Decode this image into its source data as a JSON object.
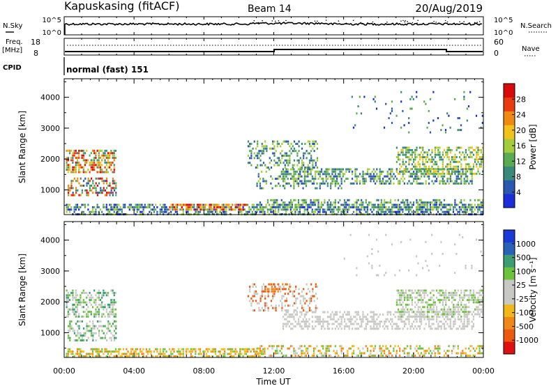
{
  "header": {
    "station": "Kapuskasing (fitACF)",
    "beam": "Beam 14",
    "date": "20/Aug/2019"
  },
  "strip_panels": {
    "nsky": {
      "left_label": "N.Sky",
      "left_ticks": [
        "10^5",
        "10^0"
      ],
      "right_ticks": [
        "10^5",
        "10^0"
      ],
      "right_label": "N.Search"
    },
    "freq": {
      "left_label_1": "Freq.",
      "left_label_2": "[MHz]",
      "left_ticks": [
        "18",
        "8"
      ],
      "right_ticks": [
        "60",
        "0"
      ],
      "right_label": "Nave"
    },
    "cpid": {
      "left_label": "CPID",
      "text": "normal (fast) 151"
    }
  },
  "chart_data": [
    {
      "type": "heatmap",
      "quantity": "power",
      "ylabel": "Slant Range [km]",
      "xlabel": "",
      "ylim": [
        200,
        4600
      ],
      "xlim_hours": [
        0,
        24
      ],
      "yticks": [
        "1000",
        "2000",
        "3000",
        "4000"
      ],
      "xticks": [
        "00:00",
        "04:00",
        "08:00",
        "12:00",
        "16:00",
        "20:00",
        "00:00"
      ],
      "colorbar": {
        "label": "Power [dB]",
        "tick_labels": [
          "4",
          "8",
          "12",
          "16",
          "20",
          "24",
          "28"
        ],
        "colors": [
          "#1a2fd8",
          "#2c58b0",
          "#3a8a7c",
          "#5aab52",
          "#a4cc3c",
          "#f0c21a",
          "#ef8a10",
          "#e83c10",
          "#d80a0a"
        ]
      }
    },
    {
      "type": "heatmap",
      "quantity": "velocity",
      "ylabel": "Slant Range [km]",
      "xlabel": "Time UT",
      "ylim": [
        200,
        4600
      ],
      "xlim_hours": [
        0,
        24
      ],
      "yticks": [
        "1000",
        "2000",
        "3000",
        "4000"
      ],
      "xticks": [
        "00:00",
        "04:00",
        "08:00",
        "12:00",
        "16:00",
        "20:00",
        "00:00"
      ],
      "colorbar": {
        "label": "Velocity [m s⁻¹]",
        "tick_labels": [
          "1000",
          "500",
          "100",
          "25",
          "-25",
          "-100",
          "-500",
          "-1000"
        ],
        "colors": [
          "#1a3ad8",
          "#2a62b6",
          "#3c9e72",
          "#6cc43c",
          "#c8c8c4",
          "#c8c8c4",
          "#f0b818",
          "#f08818",
          "#ec5a10",
          "#e01010"
        ]
      }
    }
  ]
}
